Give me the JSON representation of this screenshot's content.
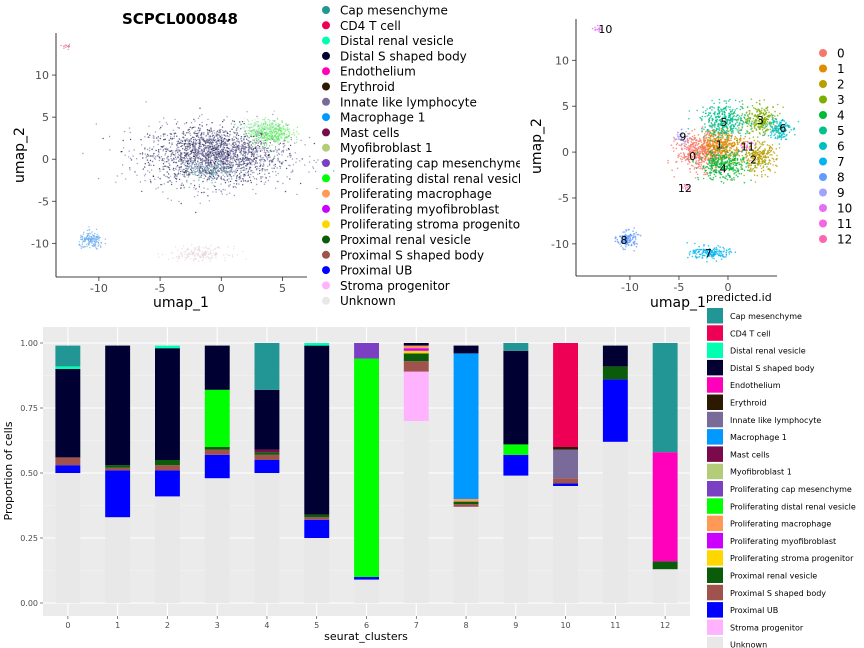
{
  "chart_data": [
    {
      "type": "scatter",
      "title": "SCPCL000848",
      "xlabel": "umap_1",
      "ylabel": "umap_2",
      "xlim": [
        -13.5,
        7
      ],
      "ylim": [
        -14,
        15
      ],
      "xticks": [
        -10,
        -5,
        0,
        5
      ],
      "yticks": [
        -10,
        -5,
        0,
        5,
        10
      ],
      "colored_by": "predicted.id",
      "legend_position": "right",
      "clusters": [
        {
          "label": "Distal S shaped body",
          "color": "#1a1a4a",
          "cx": -0.6,
          "cy": 0.5,
          "sx": 2.6,
          "sy": 1.7,
          "n": 900
        },
        {
          "label": "Innate like lymphocyte",
          "color": "#7a7aa8",
          "cx": -0.4,
          "cy": 0.4,
          "sx": 2.9,
          "sy": 1.8,
          "n": 1300
        },
        {
          "label": "Proliferating distal renal vesicle",
          "color": "#66ee66",
          "cx": 4.0,
          "cy": 3.2,
          "sx": 0.9,
          "sy": 0.7,
          "n": 380
        },
        {
          "label": "Distal renal vesicle",
          "color": "#bbeecc",
          "cx": 3.2,
          "cy": 3.8,
          "sx": 0.9,
          "sy": 0.5,
          "n": 120
        },
        {
          "label": "Cap mesenchyme",
          "color": "#5aaeb0",
          "cx": -1.0,
          "cy": -1.5,
          "sx": 1.1,
          "sy": 0.6,
          "n": 90
        },
        {
          "label": "Macrophage 1",
          "color": "#66aaee",
          "cx": -10.6,
          "cy": -9.7,
          "sx": 0.5,
          "sy": 0.5,
          "n": 160
        },
        {
          "label": "Unknown",
          "color": "#e3d4dc",
          "cx": -1.8,
          "cy": -11.2,
          "sx": 1.2,
          "sy": 0.4,
          "n": 180
        },
        {
          "label": "CD4 T cell",
          "color": "#e0609a",
          "cx": -12.6,
          "cy": 13.4,
          "sx": 0.2,
          "sy": 0.15,
          "n": 15
        }
      ]
    },
    {
      "type": "scatter",
      "title": "",
      "xlabel": "umap_1",
      "ylabel": "umap_2",
      "xlim": [
        -15.5,
        5
      ],
      "ylim": [
        -13.5,
        14.5
      ],
      "xticks": [
        -10,
        -5,
        0
      ],
      "yticks": [
        -10,
        -5,
        0,
        5,
        10
      ],
      "legend_title": "",
      "legend_position": "right",
      "legend": [
        {
          "label": "0",
          "color": "#F8766D"
        },
        {
          "label": "1",
          "color": "#DE8C00"
        },
        {
          "label": "2",
          "color": "#B79F00"
        },
        {
          "label": "3",
          "color": "#7CAE00"
        },
        {
          "label": "4",
          "color": "#00BA38"
        },
        {
          "label": "5",
          "color": "#00C08B"
        },
        {
          "label": "6",
          "color": "#00BFC4"
        },
        {
          "label": "7",
          "color": "#00B4F0"
        },
        {
          "label": "8",
          "color": "#619CFF"
        },
        {
          "label": "9",
          "color": "#A3A3FF"
        },
        {
          "label": "10",
          "color": "#E36FF6"
        },
        {
          "label": "11",
          "color": "#F564E3"
        },
        {
          "label": "12",
          "color": "#FF64B0"
        }
      ],
      "clusters": [
        {
          "label": "0",
          "color": "#F8766D",
          "cx": -2.8,
          "cy": 0.0,
          "sx": 1.2,
          "sy": 1.0,
          "n": 500
        },
        {
          "label": "1",
          "color": "#DE8C00",
          "cx": -0.6,
          "cy": 0.8,
          "sx": 1.1,
          "sy": 0.9,
          "n": 420
        },
        {
          "label": "2",
          "color": "#B79F00",
          "cx": 3.1,
          "cy": -0.6,
          "sx": 0.9,
          "sy": 0.8,
          "n": 280
        },
        {
          "label": "3",
          "color": "#7CAE00",
          "cx": 3.4,
          "cy": 3.5,
          "sx": 0.9,
          "sy": 0.8,
          "n": 260
        },
        {
          "label": "4",
          "color": "#00BA38",
          "cx": -0.5,
          "cy": -1.4,
          "sx": 1.2,
          "sy": 0.8,
          "n": 360
        },
        {
          "label": "5",
          "color": "#00C08B",
          "cx": -0.3,
          "cy": 3.4,
          "sx": 1.2,
          "sy": 0.9,
          "n": 380
        },
        {
          "label": "6",
          "color": "#00BFC4",
          "cx": 5.2,
          "cy": 2.6,
          "sx": 0.6,
          "sy": 0.6,
          "n": 160
        },
        {
          "label": "7",
          "color": "#00B4F0",
          "cx": -1.8,
          "cy": -11.0,
          "sx": 1.0,
          "sy": 0.35,
          "n": 170
        },
        {
          "label": "8",
          "color": "#619CFF",
          "cx": -10.3,
          "cy": -9.5,
          "sx": 0.5,
          "sy": 0.45,
          "n": 140
        },
        {
          "label": "9",
          "color": "#A3A3FF",
          "cx": -4.8,
          "cy": 1.6,
          "sx": 0.4,
          "sy": 0.4,
          "n": 40
        },
        {
          "label": "10",
          "color": "#E36FF6",
          "cx": -13.2,
          "cy": 13.4,
          "sx": 0.2,
          "sy": 0.15,
          "n": 15
        },
        {
          "label": "11",
          "color": "#F564E3",
          "cx": 1.8,
          "cy": 0.6,
          "sx": 0.4,
          "sy": 0.3,
          "n": 20
        },
        {
          "label": "12",
          "color": "#FF64B0",
          "cx": -4.3,
          "cy": -3.8,
          "sx": 0.25,
          "sy": 0.2,
          "n": 12
        }
      ],
      "cluster_text_labels": [
        {
          "label": "0",
          "x": -3.6,
          "y": -0.4
        },
        {
          "label": "1",
          "x": -0.9,
          "y": 0.8
        },
        {
          "label": "2",
          "x": 2.6,
          "y": -0.8
        },
        {
          "label": "3",
          "x": 3.3,
          "y": 3.5
        },
        {
          "label": "4",
          "x": -0.5,
          "y": -1.8
        },
        {
          "label": "5",
          "x": -0.4,
          "y": 3.3
        },
        {
          "label": "6",
          "x": 5.6,
          "y": 2.6
        },
        {
          "label": "7",
          "x": -2.0,
          "y": -11.0
        },
        {
          "label": "8",
          "x": -10.6,
          "y": -9.6
        },
        {
          "label": "9",
          "x": -4.6,
          "y": 1.7
        },
        {
          "label": "10",
          "x": -12.5,
          "y": 13.4
        },
        {
          "label": "11",
          "x": 2.0,
          "y": 0.6
        },
        {
          "label": "12",
          "x": -4.4,
          "y": -3.9
        }
      ]
    },
    {
      "type": "bar",
      "stacked": true,
      "xlabel": "seurat_clusters",
      "ylabel": "Proportion of cells",
      "legend_title": "predicted.id",
      "legend_position": "right",
      "ylim": [
        0,
        1
      ],
      "yticks": [
        "0.00",
        "0.25",
        "0.50",
        "0.75",
        "1.00"
      ],
      "categories": [
        "0",
        "1",
        "2",
        "3",
        "4",
        "5",
        "6",
        "7",
        "8",
        "9",
        "10",
        "11",
        "12"
      ],
      "series": [
        {
          "name": "Unknown",
          "color": "#E8E8E8",
          "values": [
            0.5,
            0.33,
            0.41,
            0.48,
            0.5,
            0.25,
            0.09,
            0.7,
            0.37,
            0.49,
            0.45,
            0.62,
            0.13
          ]
        },
        {
          "name": "Stroma progenitor",
          "color": "#FFB3FF",
          "values": [
            0,
            0,
            0,
            0,
            0,
            0,
            0,
            0.19,
            0,
            0,
            0,
            0,
            0
          ]
        },
        {
          "name": "Proximal UB",
          "color": "#0000FF",
          "values": [
            0.03,
            0.18,
            0.1,
            0.09,
            0.05,
            0.07,
            0.01,
            0,
            0,
            0.08,
            0.01,
            0.24,
            0
          ]
        },
        {
          "name": "Proximal S shaped body",
          "color": "#A0524D",
          "values": [
            0.03,
            0.01,
            0.02,
            0.02,
            0.02,
            0.01,
            0,
            0.04,
            0.01,
            0,
            0.02,
            0,
            0
          ]
        },
        {
          "name": "Proximal renal vesicle",
          "color": "#0A5C0A",
          "values": [
            0,
            0.01,
            0.02,
            0.01,
            0.01,
            0.01,
            0,
            0.03,
            0.01,
            0,
            0,
            0.05,
            0.03
          ]
        },
        {
          "name": "Proliferating stroma progenitor",
          "color": "#FFD700",
          "values": [
            0,
            0,
            0,
            0,
            0,
            0,
            0,
            0.01,
            0,
            0,
            0,
            0,
            0
          ]
        },
        {
          "name": "Proliferating myofibroblast",
          "color": "#CC00FF",
          "values": [
            0,
            0,
            0,
            0,
            0,
            0,
            0,
            0.01,
            0,
            0,
            0,
            0,
            0
          ]
        },
        {
          "name": "Proliferating macrophage",
          "color": "#FF9955",
          "values": [
            0,
            0,
            0,
            0,
            0,
            0,
            0,
            0.01,
            0.01,
            0,
            0,
            0,
            0
          ]
        },
        {
          "name": "Proliferating distal renal vesicle",
          "color": "#00FF00",
          "values": [
            0,
            0,
            0,
            0.22,
            0,
            0,
            0.84,
            0,
            0,
            0.04,
            0,
            0,
            0
          ]
        },
        {
          "name": "Proliferating cap mesenchyme",
          "color": "#7B3FC4",
          "values": [
            0,
            0,
            0,
            0,
            0,
            0,
            0.06,
            0,
            0,
            0,
            0,
            0,
            0
          ]
        },
        {
          "name": "Myofibroblast 1",
          "color": "#B3CC77",
          "values": [
            0,
            0,
            0,
            0,
            0,
            0,
            0,
            0,
            0,
            0,
            0,
            0,
            0
          ]
        },
        {
          "name": "Mast cells",
          "color": "#7A0A4A",
          "values": [
            0,
            0,
            0,
            0,
            0.01,
            0,
            0,
            0,
            0,
            0,
            0,
            0,
            0
          ]
        },
        {
          "name": "Macrophage 1",
          "color": "#0099FF",
          "values": [
            0,
            0,
            0,
            0,
            0,
            0,
            0,
            0,
            0.56,
            0,
            0,
            0,
            0
          ]
        },
        {
          "name": "Innate like lymphocyte",
          "color": "#7A6A9A",
          "values": [
            0,
            0,
            0,
            0,
            0,
            0,
            0,
            0,
            0,
            0,
            0.11,
            0,
            0
          ]
        },
        {
          "name": "Erythroid",
          "color": "#2B1A00",
          "values": [
            0,
            0,
            0,
            0,
            0,
            0,
            0,
            0,
            0,
            0,
            0.01,
            0,
            0
          ]
        },
        {
          "name": "Endothelium",
          "color": "#FF00BB",
          "values": [
            0,
            0,
            0,
            0,
            0,
            0,
            0,
            0,
            0,
            0,
            0,
            0,
            0.42
          ]
        },
        {
          "name": "Distal S shaped body",
          "color": "#000033",
          "values": [
            0.34,
            0.46,
            0.43,
            0.17,
            0.23,
            0.65,
            0,
            0.01,
            0.03,
            0.36,
            0,
            0.08,
            0
          ]
        },
        {
          "name": "Distal renal vesicle",
          "color": "#00FFB0",
          "values": [
            0.01,
            0,
            0.01,
            0,
            0,
            0.01,
            0,
            0,
            0,
            0,
            0,
            0,
            0
          ]
        },
        {
          "name": "CD4 T cell",
          "color": "#EE0055",
          "values": [
            0,
            0,
            0,
            0,
            0,
            0,
            0,
            0,
            0,
            0,
            0.4,
            0,
            0
          ]
        },
        {
          "name": "Cap mesenchyme",
          "color": "#219694",
          "values": [
            0.08,
            0,
            0,
            0,
            0.18,
            0,
            0,
            0,
            0,
            0.03,
            0,
            0,
            0.42
          ]
        }
      ],
      "legend_order": [
        "Cap mesenchyme",
        "CD4 T cell",
        "Distal renal vesicle",
        "Distal S shaped body",
        "Endothelium",
        "Erythroid",
        "Innate like lymphocyte",
        "Macrophage 1",
        "Mast cells",
        "Myofibroblast 1",
        "Proliferating cap mesenchyme",
        "Proliferating distal renal vesicle",
        "Proliferating macrophage",
        "Proliferating myofibroblast",
        "Proliferating stroma progenitor",
        "Proximal renal vesicle",
        "Proximal S shaped body",
        "Proximal UB",
        "Stroma progenitor",
        "Unknown"
      ]
    }
  ],
  "top_legend": {
    "entries": [
      {
        "label": "Cap mesenchyme",
        "color": "#219694"
      },
      {
        "label": "CD4 T cell",
        "color": "#EE0055"
      },
      {
        "label": "Distal renal vesicle",
        "color": "#00FFB0"
      },
      {
        "label": "Distal S shaped body",
        "color": "#000033"
      },
      {
        "label": "Endothelium",
        "color": "#FF00BB"
      },
      {
        "label": "Erythroid",
        "color": "#2B1A00"
      },
      {
        "label": "Innate like lymphocyte",
        "color": "#7A6A9A"
      },
      {
        "label": "Macrophage 1",
        "color": "#0099FF"
      },
      {
        "label": "Mast cells",
        "color": "#7A0A4A"
      },
      {
        "label": "Myofibroblast 1",
        "color": "#B3CC77"
      },
      {
        "label": "Proliferating cap mesenchyme",
        "color": "#7B3FC4"
      },
      {
        "label": "Proliferating distal renal vesicle",
        "color": "#00FF00"
      },
      {
        "label": "Proliferating macrophage",
        "color": "#FF9955"
      },
      {
        "label": "Proliferating myofibroblast",
        "color": "#CC00FF"
      },
      {
        "label": "Proliferating stroma progenitor",
        "color": "#FFD700"
      },
      {
        "label": "Proximal renal vesicle",
        "color": "#0A5C0A"
      },
      {
        "label": "Proximal S shaped body",
        "color": "#A0524D"
      },
      {
        "label": "Proximal UB",
        "color": "#0000FF"
      },
      {
        "label": "Stroma progenitor",
        "color": "#FFB3FF"
      },
      {
        "label": "Unknown",
        "color": "#E8E8E8"
      }
    ]
  }
}
